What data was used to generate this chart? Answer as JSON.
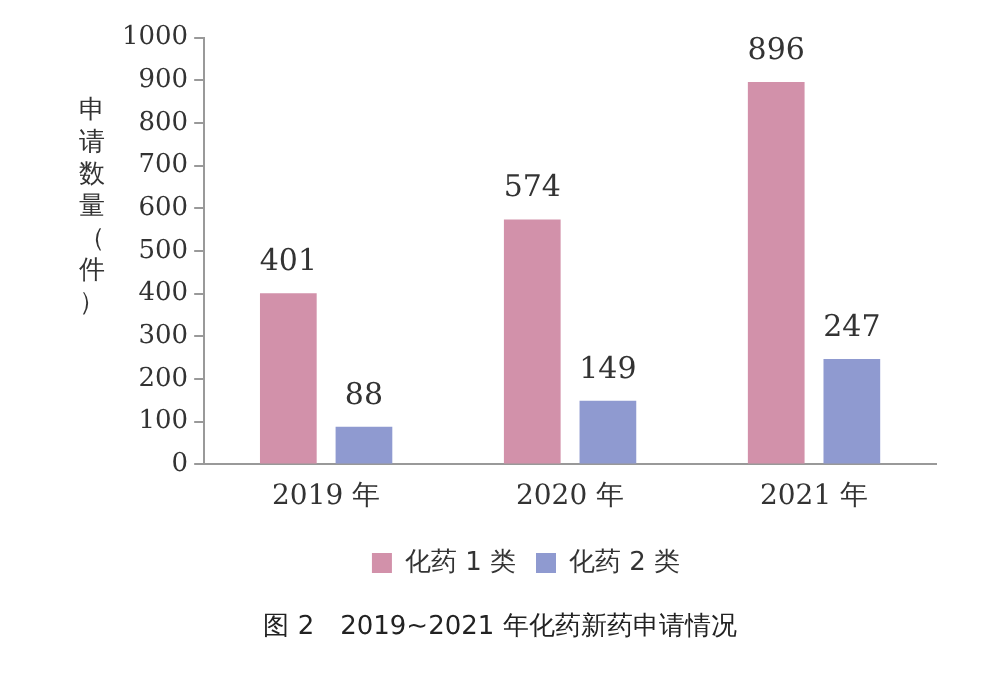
{
  "chart_data": {
    "type": "bar",
    "title": "图 2　2019~2021 年化药新药申请情况",
    "ylabel": "申请数量（件）",
    "categories": [
      "2019 年",
      "2020 年",
      "2021 年"
    ],
    "series": [
      {
        "name": "化药 1 类",
        "color": "#d291aa",
        "values": [
          401,
          574,
          896
        ]
      },
      {
        "name": "化药 2 类",
        "color": "#8f9ad0",
        "values": [
          88,
          149,
          247
        ]
      }
    ],
    "ylim": [
      0,
      1000
    ],
    "yticks": [
      0,
      100,
      200,
      300,
      400,
      500,
      600,
      700,
      800,
      900,
      1000
    ],
    "grid": false,
    "legend": "bottom",
    "data_labels": true
  }
}
